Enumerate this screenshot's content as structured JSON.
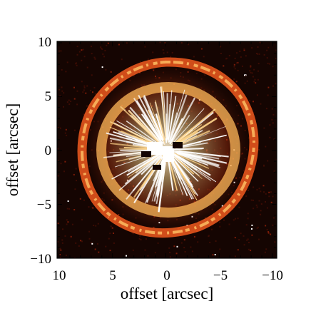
{
  "figure": {
    "image_description_icon": "nebula-ring-image",
    "x_axis": {
      "label": "offset [arcsec]",
      "range": [
        10,
        -10
      ],
      "ticks": [
        {
          "value": 10,
          "label": "10"
        },
        {
          "value": 5,
          "label": "5"
        },
        {
          "value": 0,
          "label": "0"
        },
        {
          "value": -5,
          "label": "−5"
        },
        {
          "value": -10,
          "label": "−10"
        }
      ]
    },
    "y_axis": {
      "label": "offset [arcsec]",
      "range": [
        -10,
        10
      ],
      "ticks": [
        {
          "value": 10,
          "label": "10"
        },
        {
          "value": 5,
          "label": "5"
        },
        {
          "value": 0,
          "label": "0"
        },
        {
          "value": -5,
          "label": "−5"
        },
        {
          "value": -10,
          "label": "−10"
        }
      ]
    },
    "colors": {
      "background": "#150502",
      "ring_bright": "#ffb64a",
      "ring_mid": "#e2461a",
      "ring_dark": "#6a1205",
      "core": "#ffffff"
    }
  }
}
